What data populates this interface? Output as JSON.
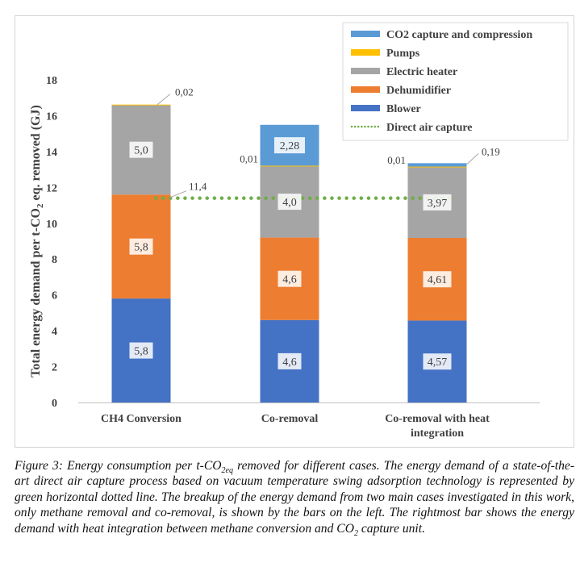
{
  "chart_data": {
    "type": "bar",
    "stacked": true,
    "categories": [
      "CH4 Conversion",
      "Co-removal",
      "Co-removal with heat integration"
    ],
    "category_lines": [
      [
        "CH4 Conversion"
      ],
      [
        "Co-removal"
      ],
      [
        "Co-removal with heat",
        "integration"
      ]
    ],
    "ylabel": "Total energy demand per t-CO₂ eq. removed (GJ)",
    "ylabel_parts": {
      "a": "Total energy demand per t-CO",
      "sub": "2",
      "b": " eq. removed (GJ)"
    },
    "ylim": [
      0,
      18
    ],
    "yticks": [
      0,
      2,
      4,
      6,
      8,
      10,
      12,
      14,
      16,
      18
    ],
    "series": [
      {
        "name": "Blower",
        "color": "#4472c4",
        "values": [
          5.8,
          4.6,
          4.57
        ],
        "labels": [
          "5,8",
          "4,6",
          "4,57"
        ]
      },
      {
        "name": "Dehumidifier",
        "color": "#ed7d31",
        "values": [
          5.8,
          4.6,
          4.61
        ],
        "labels": [
          "5,8",
          "4,6",
          "4,61"
        ]
      },
      {
        "name": "Electric heater",
        "color": "#a5a5a5",
        "values": [
          5.0,
          4.0,
          3.97
        ],
        "labels": [
          "5,0",
          "4,0",
          "3,97"
        ]
      },
      {
        "name": "Pumps",
        "color": "#ffc000",
        "values": [
          0.02,
          0.01,
          0.01
        ],
        "labels": [
          "0,02",
          "0,01",
          "0,01"
        ]
      },
      {
        "name": "CO2 capture and compression",
        "color": "#5b9bd5",
        "values": [
          0,
          2.28,
          0.19
        ],
        "labels": [
          "",
          "2,28",
          "0,19"
        ]
      }
    ],
    "legend_order": [
      "CO2 capture and compression",
      "Pumps",
      "Electric heater",
      "Dehumidifier",
      "Blower",
      "Direct air capture"
    ],
    "reference_line": {
      "name": "Direct air capture",
      "value": 11.4,
      "label": "11,4",
      "color": "#70ad47",
      "style": "dotted"
    },
    "legend_position": "top-right"
  },
  "caption": {
    "fig": "Figure 3: Energy consumption per t-CO",
    "fig_sub": "2eq",
    "text1": " removed for different cases. The energy demand of a state-of-the-art direct air capture process based on vacuum temperature swing adsorption technology is represented by green horizontal dotted line. The breakup of the energy demand from two main cases investigated in this work, only methane removal and co-removal, is shown by the bars on the left. The rightmost bar shows the energy demand with heat integration between methane conversion and CO",
    "sub2": "2",
    "text2": " capture unit."
  }
}
